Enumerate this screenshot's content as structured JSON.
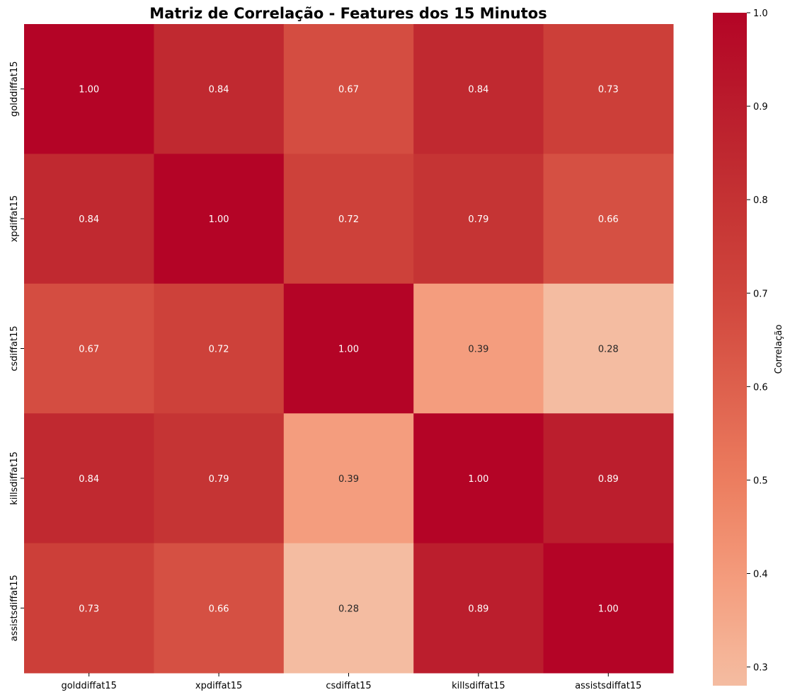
{
  "chart_data": {
    "type": "heatmap",
    "title": "Matriz de Correlação - Features dos 15 Minutos",
    "x_labels": [
      "golddiffat15",
      "xpdiffat15",
      "csdiffat15",
      "killsdiffat15",
      "assistsdiffat15"
    ],
    "y_labels": [
      "golddiffat15",
      "xpdiffat15",
      "csdiffat15",
      "killsdiffat15",
      "assistsdiffat15"
    ],
    "values": [
      [
        1.0,
        0.84,
        0.67,
        0.84,
        0.73
      ],
      [
        0.84,
        1.0,
        0.72,
        0.79,
        0.66
      ],
      [
        0.67,
        0.72,
        1.0,
        0.39,
        0.28
      ],
      [
        0.84,
        0.79,
        0.39,
        1.0,
        0.89
      ],
      [
        0.73,
        0.66,
        0.28,
        0.89,
        1.0
      ]
    ],
    "value_format": "0.00",
    "colormap": "coolwarm (center 0)",
    "colorbar": {
      "label": "Correlação",
      "range": [
        0.28,
        1.0
      ],
      "ticks": [
        0.3,
        0.4,
        0.5,
        0.6,
        0.7,
        0.8,
        0.9,
        1.0
      ]
    },
    "grid": false
  }
}
